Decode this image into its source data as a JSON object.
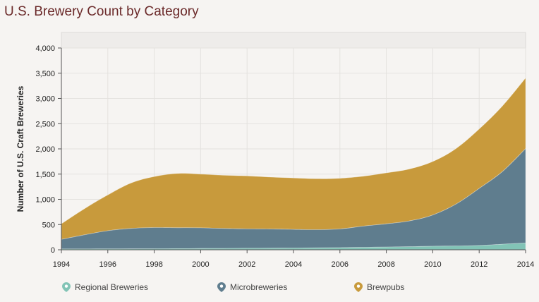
{
  "title": "U.S. Brewery Count by Category",
  "legend": [
    {
      "label": "Regional Breweries",
      "icon": "map-pin-icon",
      "color": "#82c4b6"
    },
    {
      "label": "Microbreweries",
      "icon": "map-pin-icon",
      "color": "#5f7d8e"
    },
    {
      "label": "Brewpubs",
      "icon": "map-pin-icon",
      "color": "#c89a3c"
    }
  ],
  "chart_data": {
    "type": "area",
    "stacked": true,
    "title": "U.S. Brewery Count by Category",
    "xlabel": "",
    "ylabel": "Number of U.S. Craft Breweries",
    "x": [
      1994,
      1995,
      1996,
      1997,
      1998,
      1999,
      2000,
      2001,
      2002,
      2003,
      2004,
      2005,
      2006,
      2007,
      2008,
      2009,
      2010,
      2011,
      2012,
      2013,
      2014
    ],
    "xticks": [
      "1994",
      "1996",
      "1998",
      "2000",
      "2002",
      "2004",
      "2006",
      "2008",
      "2010",
      "2012",
      "2014"
    ],
    "yticks": [
      "0",
      "500",
      "1,000",
      "1,500",
      "2,000",
      "2,500",
      "3,000",
      "3,500",
      "4,000"
    ],
    "ylim": [
      0,
      4000
    ],
    "grid": true,
    "series": [
      {
        "name": "Regional Breweries",
        "color": "#82c4b6",
        "values": [
          15,
          16,
          17,
          18,
          20,
          22,
          25,
          27,
          29,
          31,
          34,
          38,
          42,
          48,
          55,
          62,
          70,
          75,
          85,
          110,
          135
        ]
      },
      {
        "name": "Microbreweries",
        "color": "#5f7d8e",
        "values": [
          190,
          280,
          360,
          405,
          420,
          415,
          410,
          395,
          385,
          380,
          370,
          360,
          370,
          420,
          460,
          510,
          620,
          830,
          1130,
          1440,
          1870
        ]
      },
      {
        "name": "Brewpubs",
        "color": "#c89a3c",
        "values": [
          310,
          520,
          710,
          900,
          1010,
          1075,
          1065,
          1055,
          1050,
          1030,
          1020,
          1010,
          1005,
          990,
          1010,
          1030,
          1060,
          1100,
          1180,
          1300,
          1400
        ]
      }
    ]
  }
}
